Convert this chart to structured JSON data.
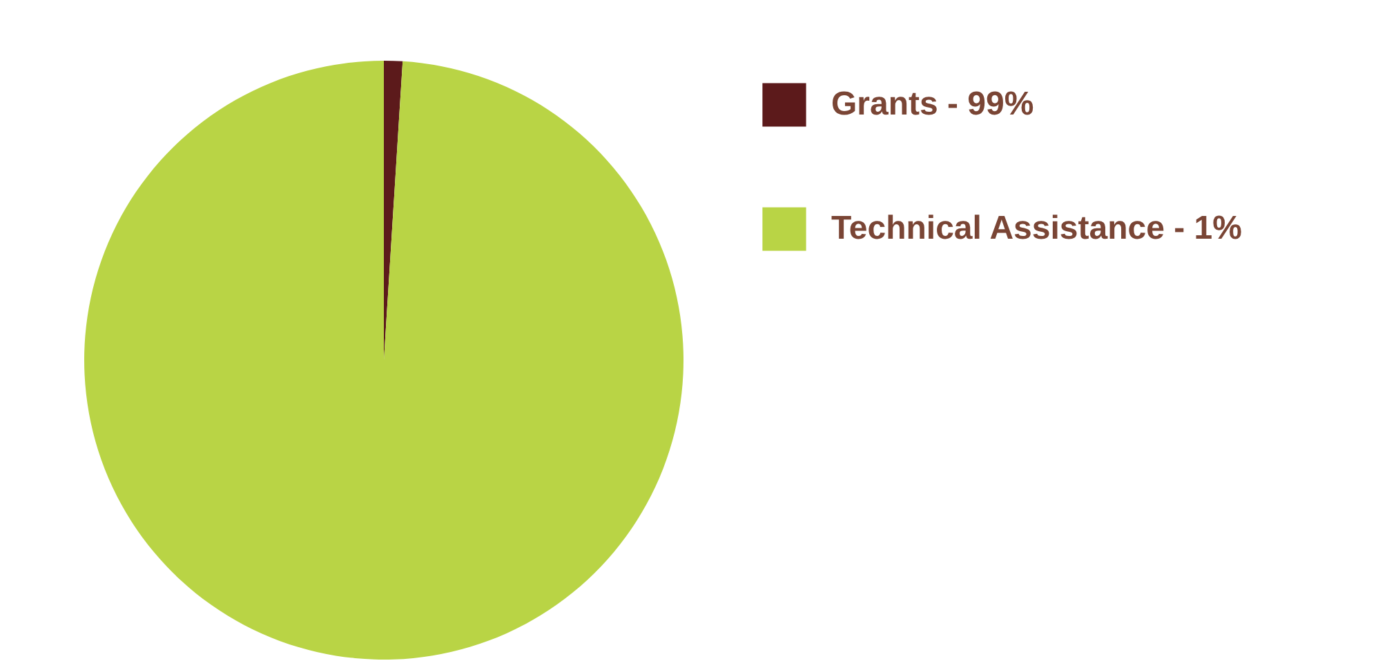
{
  "chart_data": {
    "type": "pie",
    "categories": [
      "Grants - 99%",
      "Technical Assistance - 1%"
    ],
    "values": [
      1,
      99
    ],
    "colors": [
      "#5c1a1b",
      "#b9d445"
    ],
    "legend": "top right"
  }
}
